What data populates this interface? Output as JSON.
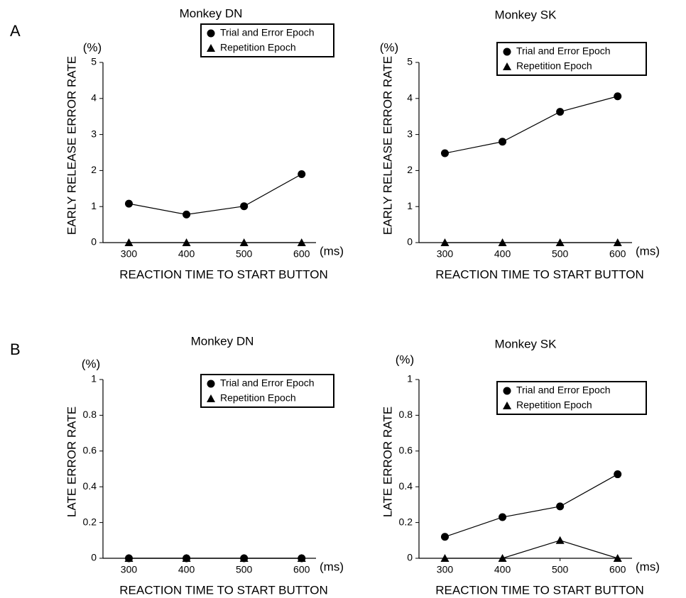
{
  "panel_labels": [
    "A",
    "B"
  ],
  "chart_data": [
    {
      "type": "line",
      "title": "Monkey DN",
      "x_label": "REACTION TIME TO START BUTTON",
      "y_label": "EARLY RELEASE ERROR RATE",
      "x_unit": "(ms)",
      "y_unit": "(%)",
      "x": [
        300,
        400,
        500,
        600
      ],
      "xlim": [
        255,
        625
      ],
      "xticks": [
        300,
        400,
        500,
        600
      ],
      "ylim": [
        0,
        5
      ],
      "yticks": [
        0,
        1,
        2,
        3,
        4,
        5
      ],
      "series": [
        {
          "name": "Trial and Error Epoch",
          "color": "#000000",
          "marker": "circle",
          "values": [
            1.08,
            0.78,
            1.01,
            1.9
          ]
        },
        {
          "name": "Repetition Epoch",
          "color": "#000000",
          "marker": "triangle",
          "values": [
            0,
            0,
            0,
            0
          ]
        }
      ]
    },
    {
      "type": "line",
      "title": "Monkey SK",
      "x_label": "REACTION TIME TO START BUTTON",
      "y_label": "EARLY RELEASE ERROR RATE",
      "x_unit": "(ms)",
      "y_unit": "(%)",
      "x": [
        300,
        400,
        500,
        600
      ],
      "xlim": [
        255,
        625
      ],
      "xticks": [
        300,
        400,
        500,
        600
      ],
      "ylim": [
        0,
        5
      ],
      "yticks": [
        0,
        1,
        2,
        3,
        4,
        5
      ],
      "series": [
        {
          "name": "Trial and Error Epoch",
          "color": "#000000",
          "marker": "circle",
          "values": [
            2.48,
            2.8,
            3.63,
            4.06
          ]
        },
        {
          "name": "Repetition Epoch",
          "color": "#000000",
          "marker": "triangle",
          "values": [
            0,
            0,
            0,
            0
          ]
        }
      ]
    },
    {
      "type": "line",
      "title": "Monkey DN",
      "x_label": "REACTION TIME TO START BUTTON",
      "y_label": "LATE ERROR RATE",
      "x_unit": "(ms)",
      "y_unit": "(%)",
      "x": [
        300,
        400,
        500,
        600
      ],
      "xlim": [
        255,
        625
      ],
      "xticks": [
        300,
        400,
        500,
        600
      ],
      "ylim": [
        0,
        1
      ],
      "yticks": [
        0,
        0.2,
        0.4,
        0.6,
        0.8,
        1
      ],
      "series": [
        {
          "name": "Trial and Error Epoch",
          "color": "#000000",
          "marker": "circle",
          "values": [
            0,
            0,
            0,
            0
          ]
        },
        {
          "name": "Repetition Epoch",
          "color": "#000000",
          "marker": "triangle",
          "values": [
            0,
            0,
            0,
            0
          ]
        }
      ]
    },
    {
      "type": "line",
      "title": "Monkey SK",
      "x_label": "REACTION TIME TO START BUTTON",
      "y_label": "LATE ERROR RATE",
      "x_unit": "(ms)",
      "y_unit": "(%)",
      "x": [
        300,
        400,
        500,
        600
      ],
      "xlim": [
        255,
        625
      ],
      "xticks": [
        300,
        400,
        500,
        600
      ],
      "ylim": [
        0,
        1
      ],
      "yticks": [
        0,
        0.2,
        0.4,
        0.6,
        0.8,
        1
      ],
      "series": [
        {
          "name": "Trial and Error Epoch",
          "color": "#000000",
          "marker": "circle",
          "values": [
            0.12,
            0.23,
            0.29,
            0.47
          ]
        },
        {
          "name": "Repetition Epoch",
          "color": "#000000",
          "marker": "triangle",
          "values": [
            0,
            0,
            0.1,
            0
          ]
        }
      ]
    }
  ]
}
